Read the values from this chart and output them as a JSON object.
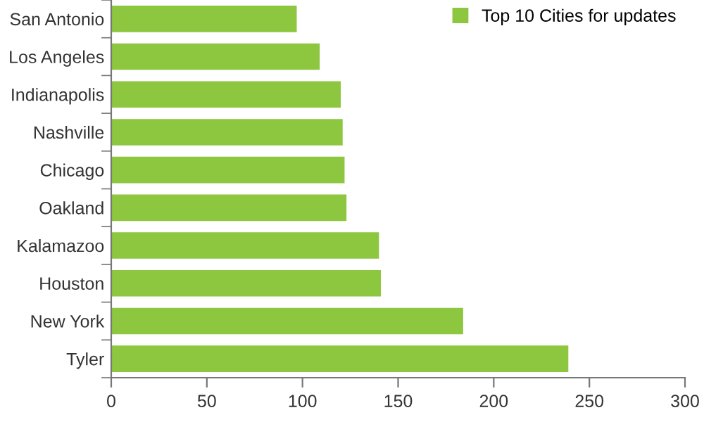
{
  "chart_data": {
    "type": "bar",
    "orientation": "horizontal",
    "categories": [
      "San Antonio",
      "Los Angeles",
      "Indianapolis",
      "Nashville",
      "Chicago",
      "Oakland",
      "Kalamazoo",
      "Houston",
      "New York",
      "Tyler"
    ],
    "series": [
      {
        "name": "Top 10 Cities for updates",
        "color": "#8dc63f",
        "values": [
          97,
          109,
          120,
          121,
          122,
          123,
          140,
          141,
          184,
          239
        ]
      }
    ],
    "xlim": [
      0,
      300
    ],
    "xticks": [
      0,
      50,
      100,
      150,
      200,
      250,
      300
    ],
    "grid": false,
    "legend": "top right"
  }
}
